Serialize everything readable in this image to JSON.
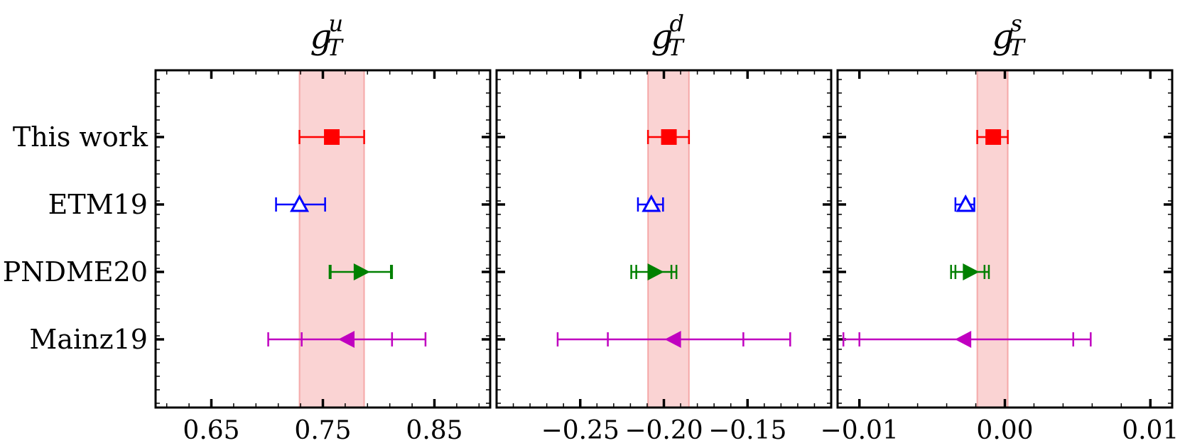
{
  "chart_data": [
    {
      "type": "errorbar",
      "title": {
        "base": "g",
        "sup": "u",
        "sub": "T"
      },
      "categories": [
        "This work",
        "ETM19",
        "PNDME20",
        "Mainz19"
      ],
      "xlim": [
        0.6,
        0.9
      ],
      "xticks": [
        0.65,
        0.75,
        0.85
      ],
      "xtick_labels": [
        "0.65",
        "0.75",
        "0.85"
      ],
      "band": {
        "low": 0.729,
        "high": 0.787,
        "color": "#f08080"
      },
      "points": [
        {
          "label": "This work",
          "marker": "square",
          "color": "#ff0000",
          "value": 0.758,
          "err_low": 0.729,
          "err_high": 0.787
        },
        {
          "label": "ETM19",
          "marker": "triangle-up-open",
          "color": "#0000ff",
          "value": 0.729,
          "err_low": 0.708,
          "err_high": 0.752
        },
        {
          "label": "PNDME20",
          "marker": "triangle-right",
          "color": "#008000",
          "value": 0.784,
          "err_low": 0.756,
          "err_high": 0.812,
          "inner_low": 0.757,
          "inner_high": 0.811
        },
        {
          "label": "Mainz19",
          "marker": "triangle-left",
          "color": "#c000c0",
          "value": 0.772,
          "err_low": 0.701,
          "err_high": 0.842,
          "inner_low": 0.731,
          "inner_high": 0.812
        }
      ]
    },
    {
      "type": "errorbar",
      "title": {
        "base": "g",
        "sup": "d",
        "sub": "T"
      },
      "categories": [
        "This work",
        "ETM19",
        "PNDME20",
        "Mainz19"
      ],
      "xlim": [
        -0.3,
        -0.1
      ],
      "xticks": [
        -0.25,
        -0.2,
        -0.15
      ],
      "xtick_labels": [
        "−0.25",
        "−0.20",
        "−0.15"
      ],
      "band": {
        "low": -0.2095,
        "high": -0.185,
        "color": "#f08080"
      },
      "points": [
        {
          "label": "This work",
          "marker": "square",
          "color": "#ff0000",
          "value": -0.197,
          "err_low": -0.2095,
          "err_high": -0.185
        },
        {
          "label": "ETM19",
          "marker": "triangle-up-open",
          "color": "#0000ff",
          "value": -0.2075,
          "err_low": -0.2155,
          "err_high": -0.2005
        },
        {
          "label": "PNDME20",
          "marker": "triangle-right",
          "color": "#008000",
          "value": -0.2055,
          "err_low": -0.2195,
          "err_high": -0.1925,
          "inner_low": -0.2165,
          "inner_high": -0.1955
        },
        {
          "label": "Mainz19",
          "marker": "triangle-left",
          "color": "#c000c0",
          "value": -0.194,
          "err_low": -0.2635,
          "err_high": -0.1245,
          "inner_low": -0.2335,
          "inner_high": -0.1525
        }
      ]
    },
    {
      "type": "errorbar",
      "title": {
        "base": "g",
        "sup": "s",
        "sub": "T"
      },
      "categories": [
        "This work",
        "ETM19",
        "PNDME20",
        "Mainz19"
      ],
      "xlim": [
        -0.0115,
        0.0115
      ],
      "xticks": [
        -0.01,
        0.0,
        0.01
      ],
      "xtick_labels": [
        "−0.01",
        "0.00",
        "0.01"
      ],
      "band": {
        "low": -0.0019,
        "high": 0.0002,
        "color": "#f08080"
      },
      "points": [
        {
          "label": "This work",
          "marker": "square",
          "color": "#ff0000",
          "value": -0.0008,
          "err_low": -0.0019,
          "err_high": 0.0002
        },
        {
          "label": "ETM19",
          "marker": "triangle-up-open",
          "color": "#0000ff",
          "value": -0.0027,
          "err_low": -0.0034,
          "err_high": -0.0021
        },
        {
          "label": "PNDME20",
          "marker": "triangle-right",
          "color": "#008000",
          "value": -0.0024,
          "err_low": -0.0037,
          "err_high": -0.0011,
          "inner_low": -0.0034,
          "inner_high": -0.0014
        },
        {
          "label": "Mainz19",
          "marker": "triangle-left",
          "color": "#c000c0",
          "value": -0.0028,
          "err_low": -0.0111,
          "err_high": 0.0059,
          "inner_low": -0.01,
          "inner_high": 0.0047
        }
      ]
    }
  ]
}
